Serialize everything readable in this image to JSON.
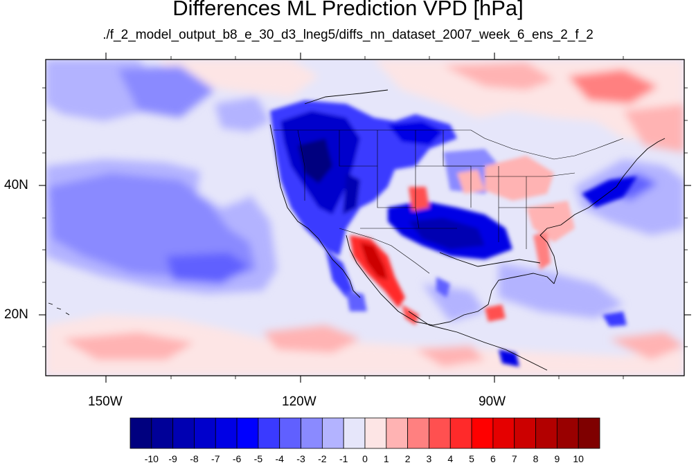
{
  "title": "Differences ML Prediction VPD [hPa]",
  "subtitle": "./f_2_model_output_b8_e_30_d3_lneg5/diffs_nn_dataset_2007_week_6_ens_2_f_2",
  "axes": {
    "lon_labels": [
      "150W",
      "120W",
      "90W"
    ],
    "lat_labels": [
      "40N",
      "20N"
    ]
  },
  "colorbar": {
    "labels": [
      "-10",
      "-9",
      "-8",
      "-7",
      "-6",
      "-5",
      "-4",
      "-3",
      "-2",
      "-1",
      "0",
      "1",
      "2",
      "3",
      "4",
      "5",
      "6",
      "7",
      "8",
      "9",
      "10"
    ],
    "colors": [
      "#00007f",
      "#000098",
      "#0000b2",
      "#0000cc",
      "#0000e5",
      "#0000ff",
      "#3a3aff",
      "#6060ff",
      "#8a8aff",
      "#b3b3ff",
      "#e6e6fa",
      "#fde5e5",
      "#ffb3b3",
      "#ff8080",
      "#ff5050",
      "#ff2a2a",
      "#ff0000",
      "#e50000",
      "#cc0000",
      "#b20000",
      "#990000",
      "#7f0000"
    ]
  }
}
